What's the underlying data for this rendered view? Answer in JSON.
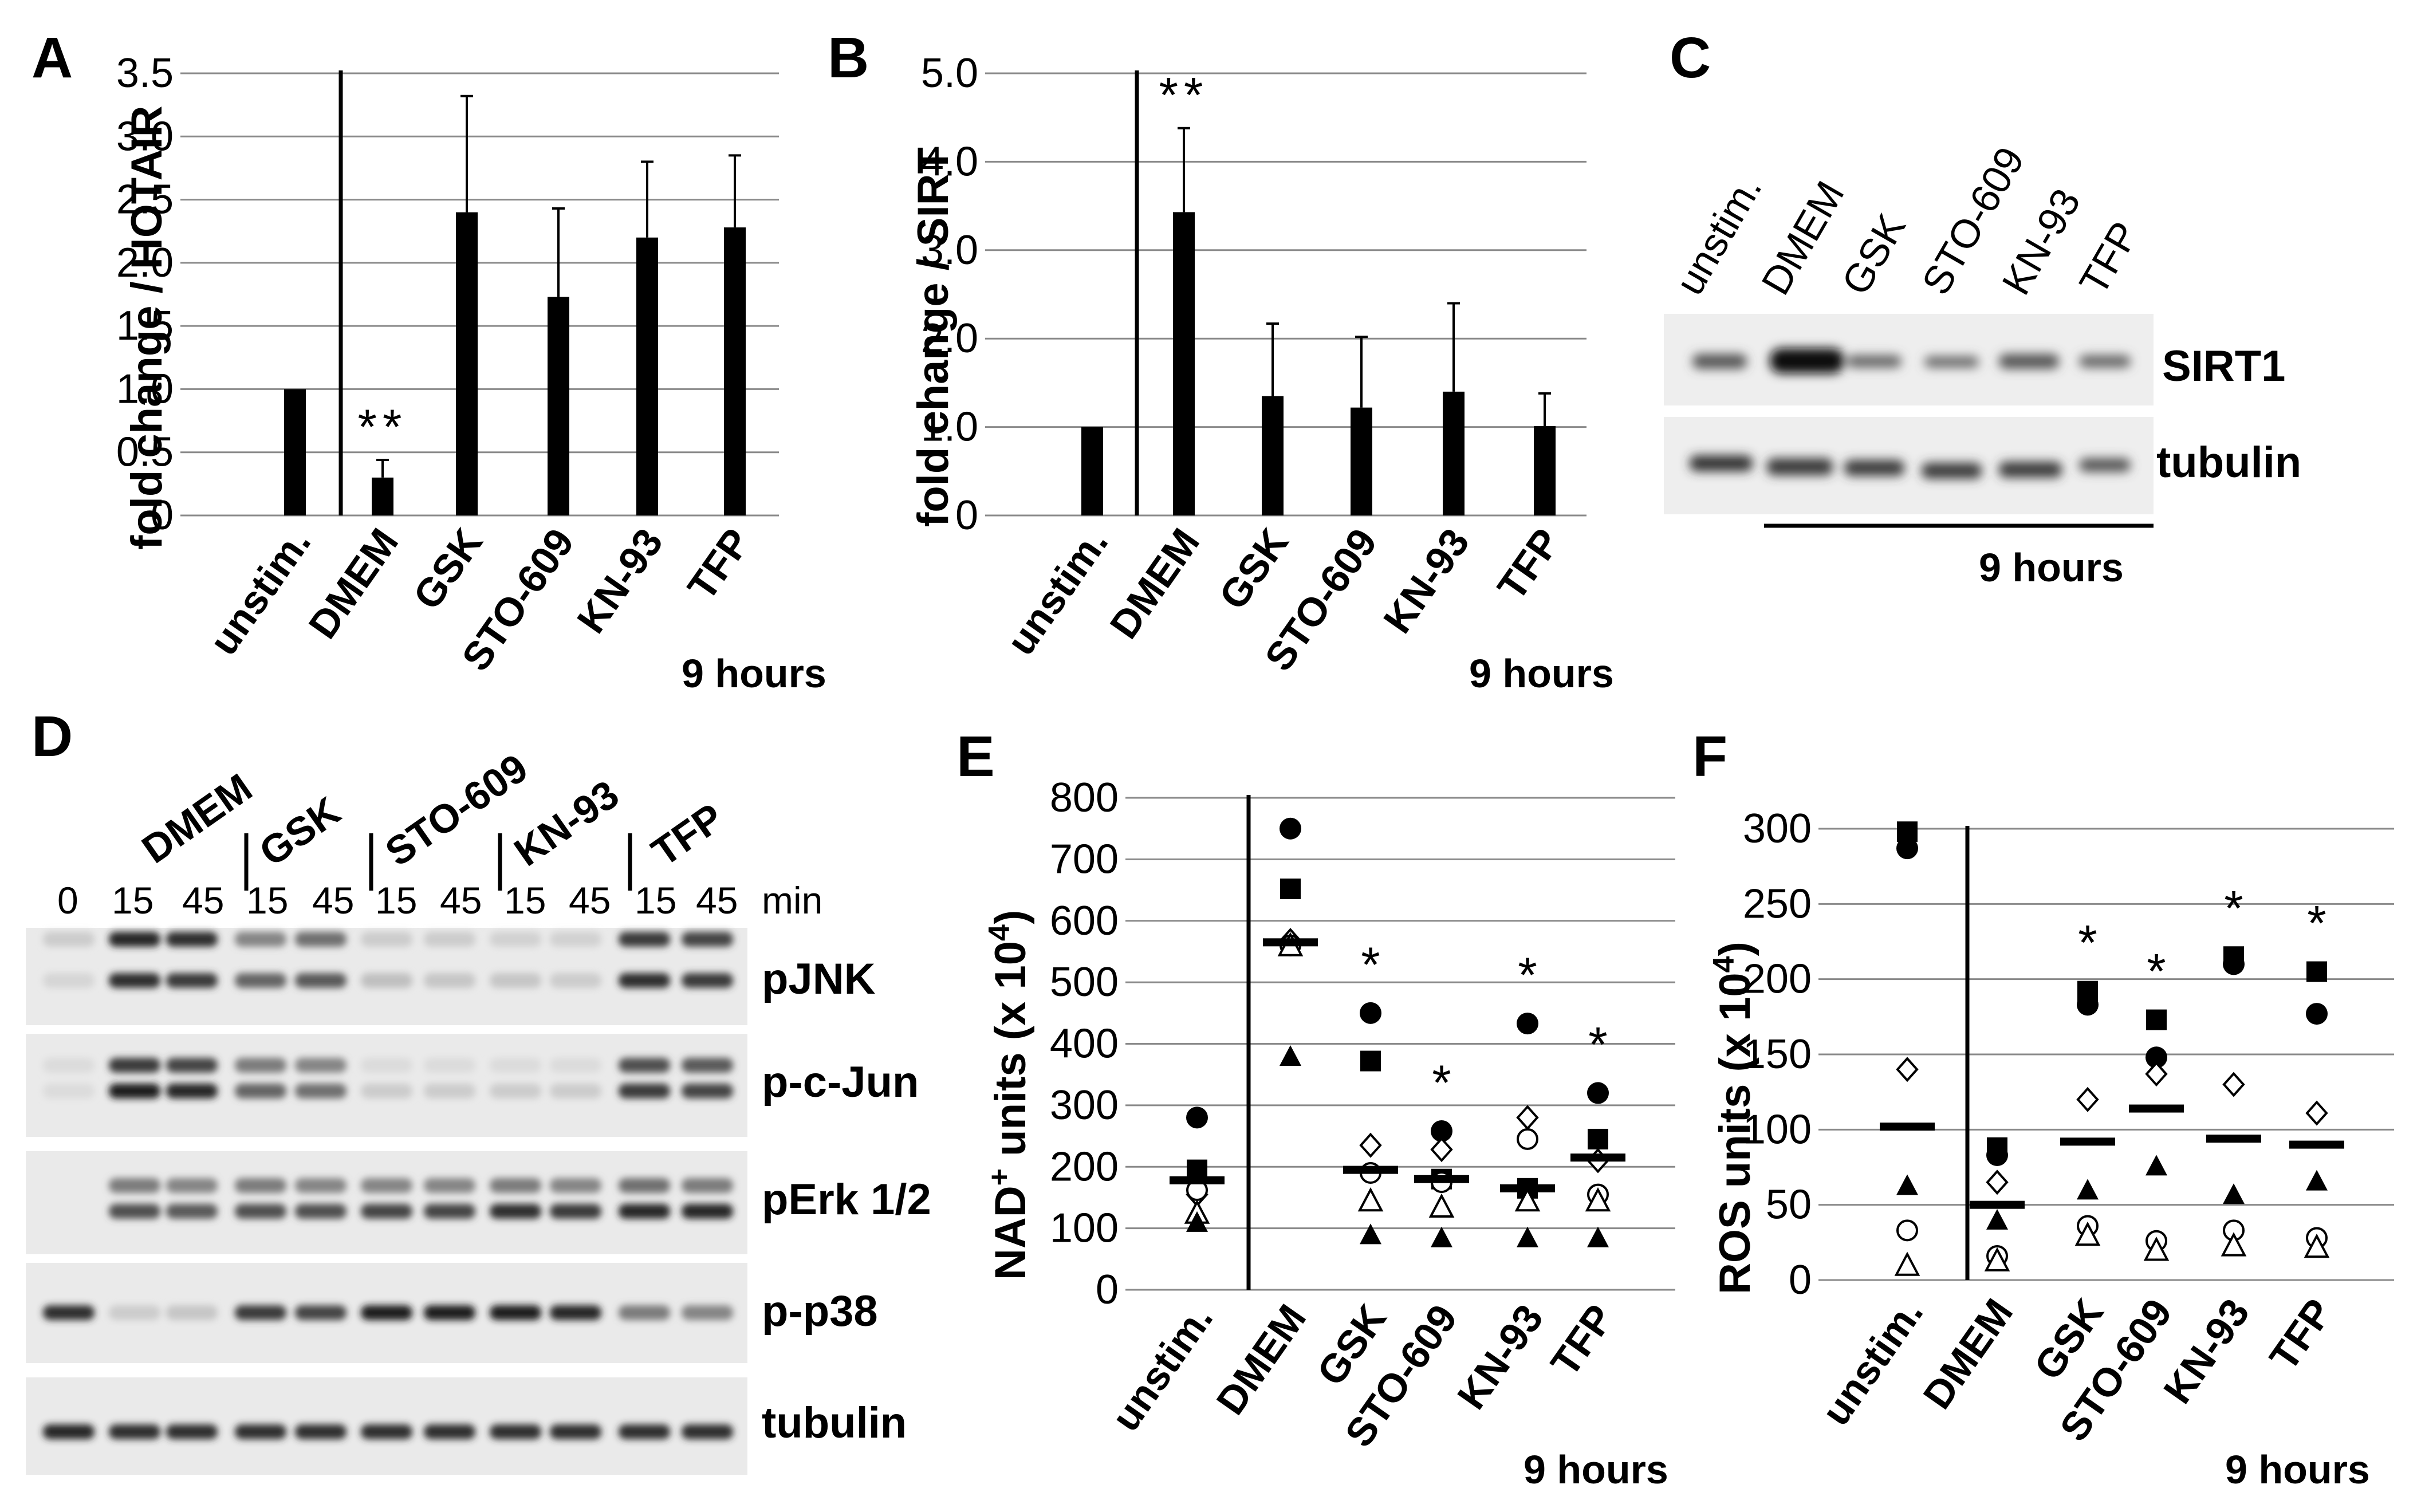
{
  "panels": {
    "A": {
      "label": "A",
      "ylabel": "fold change / HOTAIR",
      "time": "9 hours"
    },
    "B": {
      "label": "B",
      "ylabel": "fold change / SIRT",
      "time": "9 hours"
    },
    "C": {
      "label": "C",
      "lanes": [
        "unstim.",
        "DMEM",
        "GSK",
        "STO-609",
        "KN-93",
        "TFP"
      ],
      "bands": [
        "SIRT1",
        "tubulin"
      ],
      "time": "9 hours"
    },
    "D": {
      "label": "D",
      "groups": [
        "DMEM",
        "GSK",
        "STO-609",
        "KN-93",
        "TFP"
      ],
      "timepoints": [
        "0",
        "15",
        "45",
        "15",
        "45",
        "15",
        "45",
        "15",
        "45",
        "15",
        "45"
      ],
      "unit": "min",
      "bands": [
        "pJNK",
        "p-c-Jun",
        "pErk 1/2",
        "p-p38",
        "tubulin"
      ]
    },
    "E": {
      "label": "E",
      "ylabel_main": "NAD",
      "ylabel_sup": "+",
      "ylabel_rest": " units (x 10",
      "ylabel_exp": "4",
      "ylabel_end": ")",
      "time": "9 hours"
    },
    "F": {
      "label": "F",
      "ylabel_main": "ROS units (x 10",
      "ylabel_exp": "4",
      "ylabel_end": ")",
      "time": "9 hours"
    }
  },
  "chart_data": [
    {
      "panel": "A",
      "type": "bar",
      "categories": [
        "unstim.",
        "DMEM",
        "GSK",
        "STO-609",
        "KN-93",
        "TFP"
      ],
      "values": [
        1.0,
        0.3,
        2.4,
        1.73,
        2.2,
        2.28
      ],
      "errors": [
        0,
        0.14,
        0.92,
        0.7,
        0.6,
        0.57
      ],
      "ylabel": "fold change / HOTAIR",
      "ylim": [
        0,
        3.5
      ],
      "yticks": [
        "0",
        "0.5",
        "1.0",
        "1.5",
        "2.0",
        "2.5",
        "3.0",
        "3.5"
      ],
      "annotations": [
        {
          "category": "DMEM",
          "text": "**"
        }
      ]
    },
    {
      "panel": "B",
      "type": "bar",
      "categories": [
        "unstim.",
        "DMEM",
        "GSK",
        "STO-609",
        "KN-93",
        "TFP"
      ],
      "values": [
        1.0,
        3.43,
        1.35,
        1.22,
        1.4,
        1.01
      ],
      "errors": [
        0,
        0.95,
        0.82,
        0.8,
        1.0,
        0.37
      ],
      "ylabel": "fold change / SIRT",
      "ylim": [
        0,
        5.0
      ],
      "yticks": [
        "0",
        "1.0",
        "2.0",
        "3.0",
        "4.0",
        "5.0"
      ],
      "annotations": [
        {
          "category": "DMEM",
          "text": "**"
        }
      ]
    },
    {
      "panel": "E",
      "type": "scatter",
      "categories": [
        "unstim.",
        "DMEM",
        "GSK",
        "STO-609",
        "KN-93",
        "TFP"
      ],
      "ylim": [
        0,
        800
      ],
      "yticks": [
        "0",
        "100",
        "200",
        "300",
        "400",
        "500",
        "600",
        "700",
        "800"
      ],
      "means": [
        178,
        565,
        195,
        180,
        165,
        215
      ],
      "series": [
        {
          "marker": "filled-circle",
          "values": [
            280,
            750,
            450,
            258,
            433,
            320
          ]
        },
        {
          "marker": "filled-square",
          "values": [
            195,
            652,
            372,
            180,
            165,
            245
          ]
        },
        {
          "marker": "open-diamond",
          "values": [
            155,
            568,
            235,
            228,
            280,
            210
          ]
        },
        {
          "marker": "open-circle",
          "values": [
            162,
            560,
            190,
            175,
            245,
            155
          ]
        },
        {
          "marker": "open-triangle",
          "values": [
            125,
            560,
            145,
            135,
            145,
            145
          ]
        },
        {
          "marker": "filled-triangle",
          "values": [
            110,
            380,
            90,
            85,
            85,
            85
          ]
        }
      ],
      "annotations": [
        {
          "category": "GSK",
          "text": "*"
        },
        {
          "category": "STO-609",
          "text": "*"
        },
        {
          "category": "KN-93",
          "text": "*"
        },
        {
          "category": "TFP",
          "text": "*"
        }
      ]
    },
    {
      "panel": "F",
      "type": "scatter",
      "categories": [
        "unstim.",
        "DMEM",
        "GSK",
        "STO-609",
        "KN-93",
        "TFP"
      ],
      "ylim": [
        0,
        300
      ],
      "yticks": [
        "0",
        "50",
        "100",
        "150",
        "200",
        "250",
        "300"
      ],
      "means": [
        102,
        50,
        92,
        114,
        94,
        90
      ],
      "series": [
        {
          "marker": "filled-circle",
          "values": [
            287,
            83,
            183,
            148,
            210,
            177
          ]
        },
        {
          "marker": "filled-square",
          "values": [
            298,
            88,
            192,
            173,
            215,
            205
          ]
        },
        {
          "marker": "open-diamond",
          "values": [
            140,
            65,
            120,
            137,
            130,
            111
          ]
        },
        {
          "marker": "open-circle",
          "values": [
            33,
            16,
            36,
            26,
            33,
            28
          ]
        },
        {
          "marker": "open-triangle",
          "values": [
            10,
            13,
            30,
            20,
            23,
            22
          ]
        },
        {
          "marker": "filled-triangle",
          "values": [
            63,
            40,
            60,
            76,
            57,
            66
          ]
        }
      ],
      "annotations": [
        {
          "category": "GSK",
          "text": "*"
        },
        {
          "category": "STO-609",
          "text": "*"
        },
        {
          "category": "KN-93",
          "text": "*"
        },
        {
          "category": "TFP",
          "text": "*"
        }
      ]
    }
  ]
}
